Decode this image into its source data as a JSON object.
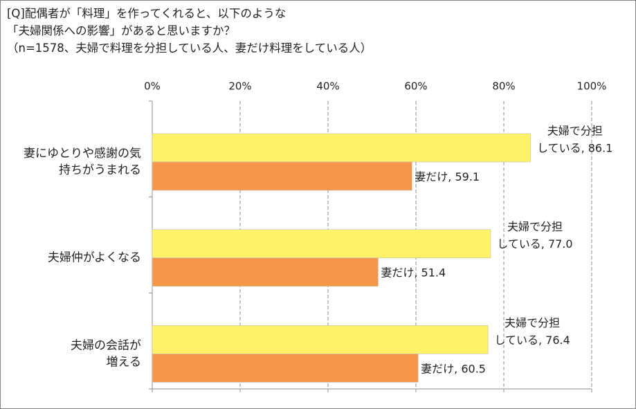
{
  "title_lines": [
    "[Q]配偶者が「料理」を作ってくれると、以下のような",
    "「夫婦関係への影響」があると思いますか？",
    "（n=1578、夫婦で料理を分担している人、妻だけ料理をしている人）"
  ],
  "chart_data": {
    "type": "bar",
    "orientation": "horizontal",
    "xlim": [
      0,
      100
    ],
    "x_ticks": [
      "0%",
      "20%",
      "40%",
      "60%",
      "80%",
      "100%"
    ],
    "grid": "vertical dashed",
    "categories": [
      [
        "妻にゆとりや感謝の気",
        "持ちがうまれる"
      ],
      [
        "夫婦仲がよくなる"
      ],
      [
        "夫婦の会話が",
        "増える"
      ]
    ],
    "series": [
      {
        "color": "#FFF266",
        "values": [
          86.1,
          77.0,
          76.4
        ],
        "data_labels": [
          [
            "夫婦で分担",
            "している, 86.1"
          ],
          [
            "夫婦で分担",
            "している, 77.0"
          ],
          [
            "夫婦で分担",
            "している, 76.4"
          ]
        ]
      },
      {
        "color": "#F79646",
        "values": [
          59.1,
          51.4,
          60.5
        ],
        "data_labels": [
          [
            "妻だけ, 59.1"
          ],
          [
            "妻だけ, 51.4"
          ],
          [
            "妻だけ, 60.5"
          ]
        ]
      }
    ]
  }
}
